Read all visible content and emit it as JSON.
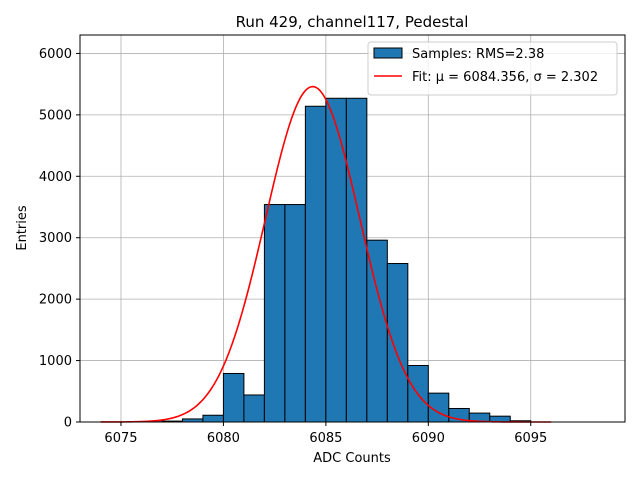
{
  "chart_data": {
    "type": "bar",
    "title": "Run 429, channel117, Pedestal",
    "xlabel": "ADC Counts",
    "ylabel": "Entries",
    "xlim": [
      6073,
      6099.6
    ],
    "ylim": [
      0,
      6300
    ],
    "grid": true,
    "legend_position": "top-right",
    "x_ticks": [
      6075,
      6080,
      6085,
      6090,
      6095
    ],
    "y_ticks": [
      0,
      1000,
      2000,
      3000,
      4000,
      5000,
      6000
    ],
    "series": [
      {
        "name": "Samples: RMS=2.38",
        "type": "histogram",
        "bin_width": 1.0,
        "bin_edges": [
          6076,
          6077,
          6078,
          6079,
          6080,
          6081,
          6082,
          6083,
          6084,
          6085,
          6086,
          6087,
          6088,
          6089,
          6090,
          6091,
          6092,
          6093,
          6094,
          6095
        ],
        "values": [
          5,
          15,
          50,
          110,
          790,
          440,
          3540,
          3540,
          5140,
          5270,
          5270,
          2960,
          2580,
          920,
          470,
          220,
          145,
          95,
          20
        ],
        "color": "#1f77b4"
      },
      {
        "name": "Fit: μ = 6084.356, σ = 2.302",
        "type": "gaussian-fit",
        "mu": 6084.356,
        "sigma": 2.302,
        "amplitude": 5460,
        "x_range": [
          6074,
          6096
        ],
        "color": "#ff0000"
      }
    ]
  }
}
